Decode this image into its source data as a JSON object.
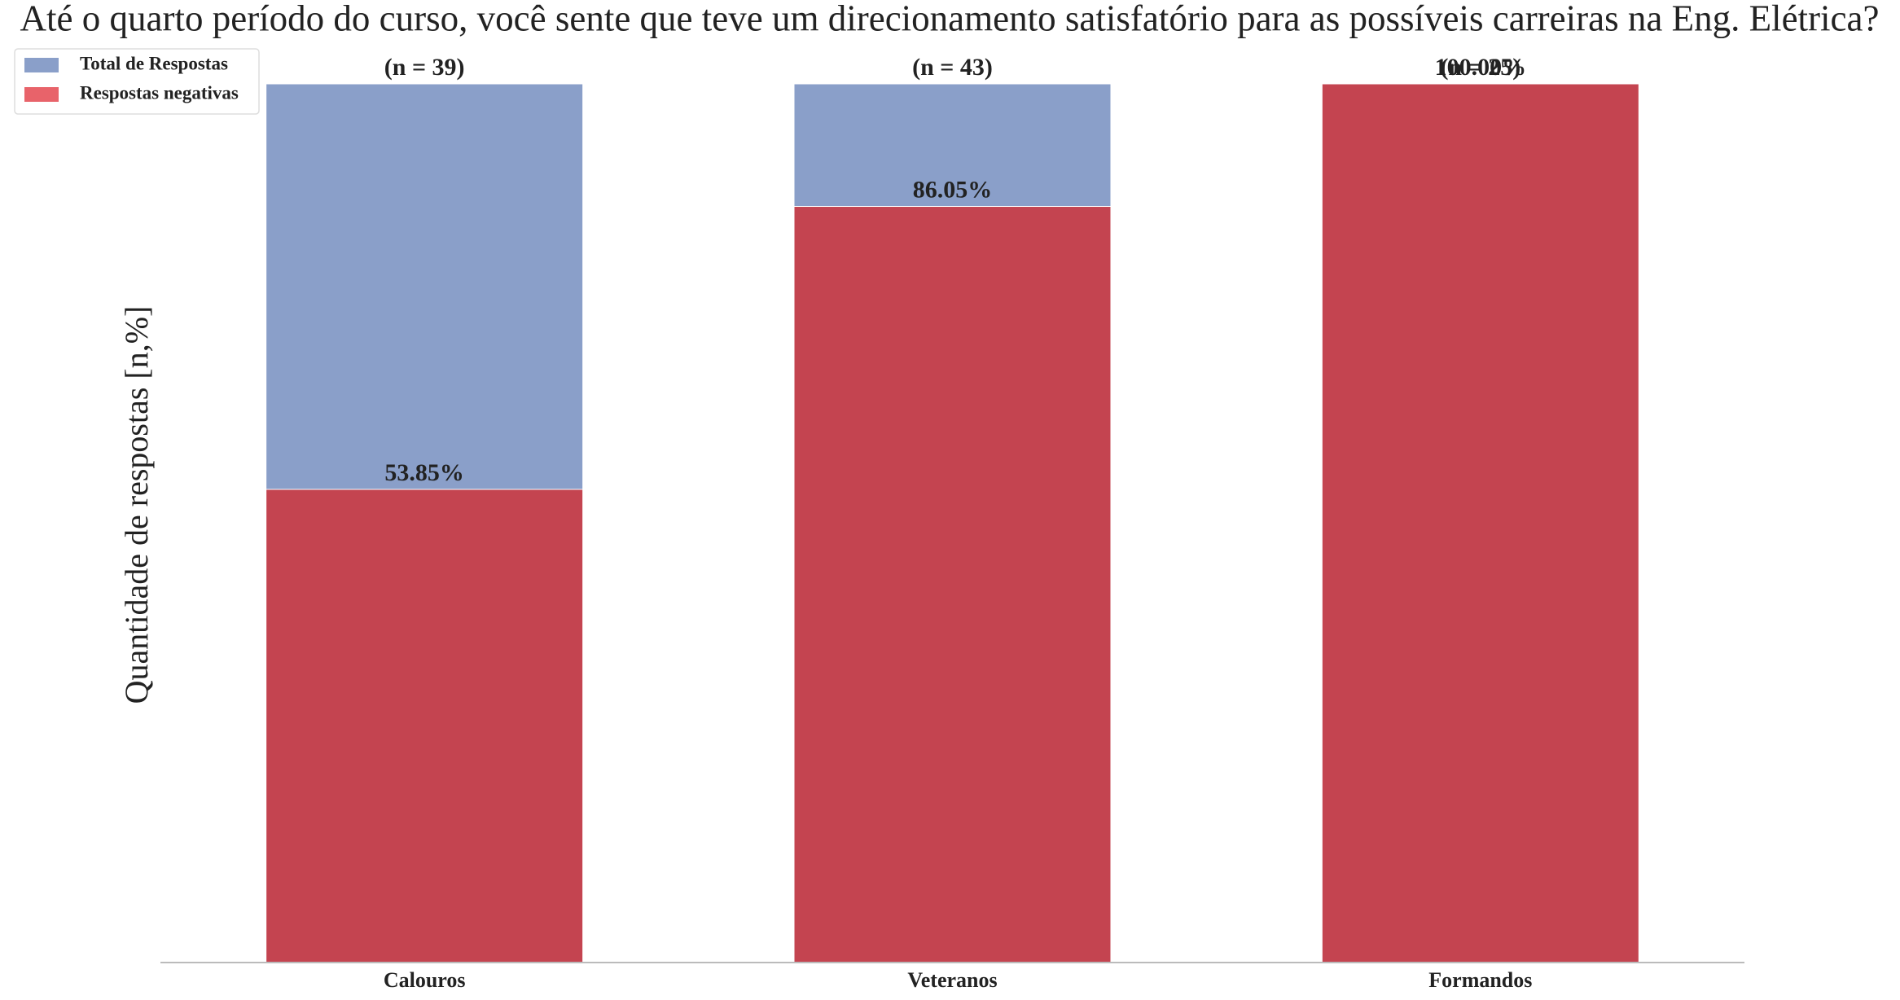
{
  "chart_data": {
    "type": "bar",
    "title": "Até o quarto período do curso, você sente que teve um direcionamento satisfatório para as possíveis carreiras na Eng. Elétrica?",
    "ylabel": "Quantidade de respostas [n,%]",
    "categories": [
      "Calouros",
      "Veteranos",
      "Formandos"
    ],
    "annotations": [
      "(n = 39)",
      "(n = 43)",
      "(n = 25)"
    ],
    "series": [
      {
        "name": "Total de Respostas",
        "color": "#8a9fc9",
        "values": [
          100,
          100,
          100
        ]
      },
      {
        "name": "Respostas negativas",
        "color": "#c44450",
        "legend_color": "#e8636a",
        "values": [
          53.85,
          86.05,
          100
        ],
        "value_labels": [
          "53.85%",
          "86.05%",
          "100.00%"
        ]
      }
    ],
    "ylim": [
      0,
      100
    ],
    "legend": "upper left"
  }
}
